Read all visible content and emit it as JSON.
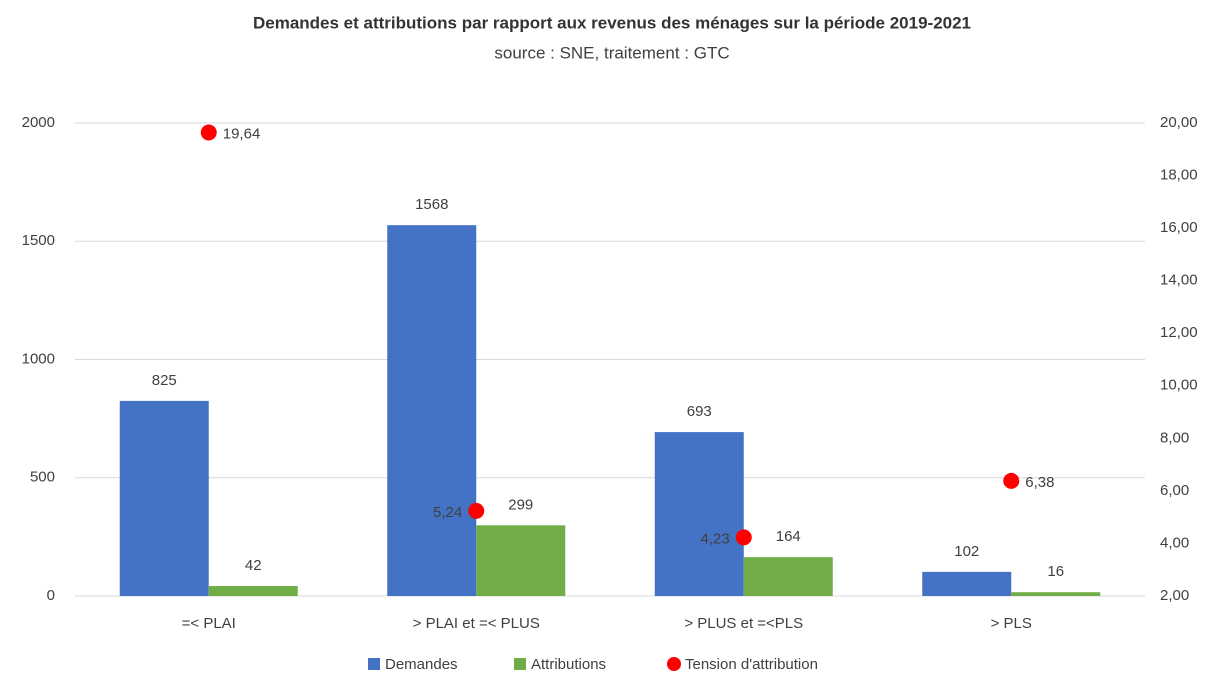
{
  "chart_data": {
    "type": "bar",
    "title": "Demandes et attributions par rapport aux revenus des ménages sur la période 2019-2021",
    "subtitle": "source : SNE, traitement : GTC",
    "categories": [
      "=< PLAI",
      "> PLAI et =< PLUS",
      "> PLUS et =<PLS",
      "> PLS"
    ],
    "series": [
      {
        "name": "Demandes",
        "type": "bar",
        "color": "#4472c4",
        "values": [
          825,
          1568,
          693,
          102
        ]
      },
      {
        "name": "Attributions",
        "type": "bar",
        "color": "#70ad47",
        "values": [
          42,
          299,
          164,
          16
        ]
      },
      {
        "name": "Tension d'attribution",
        "type": "scatter",
        "axis": "y2",
        "color": "#ff0000",
        "values": [
          19.64,
          5.24,
          4.23,
          6.38
        ],
        "value_labels": [
          "19,64",
          "5,24",
          "4,23",
          "6,38"
        ]
      }
    ],
    "ylim": [
      0,
      2000
    ],
    "yticks": [
      0,
      500,
      1000,
      1500,
      2000
    ],
    "y2lim": [
      2,
      20
    ],
    "y2ticks": [
      {
        "value": 2,
        "label": "2,00"
      },
      {
        "value": 4,
        "label": "4,00"
      },
      {
        "value": 6,
        "label": "6,00"
      },
      {
        "value": 8,
        "label": "8,00"
      },
      {
        "value": 10,
        "label": "10,00"
      },
      {
        "value": 12,
        "label": "12,00"
      },
      {
        "value": 14,
        "label": "14,00"
      },
      {
        "value": 16,
        "label": "16,00"
      },
      {
        "value": 18,
        "label": "18,00"
      },
      {
        "value": 20,
        "label": "20,00"
      }
    ],
    "grid": true,
    "legend": "bottom"
  }
}
